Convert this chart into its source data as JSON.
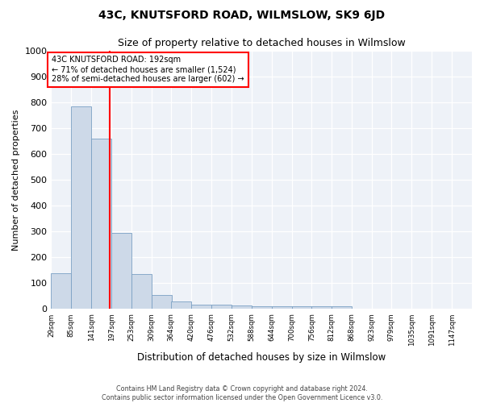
{
  "title": "43C, KNUTSFORD ROAD, WILMSLOW, SK9 6JD",
  "subtitle": "Size of property relative to detached houses in Wilmslow",
  "xlabel": "Distribution of detached houses by size in Wilmslow",
  "ylabel": "Number of detached properties",
  "footer1": "Contains HM Land Registry data © Crown copyright and database right 2024.",
  "footer2": "Contains public sector information licensed under the Open Government Licence v3.0.",
  "annotation_line1": "43C KNUTSFORD ROAD: 192sqm",
  "annotation_line2": "← 71% of detached houses are smaller (1,524)",
  "annotation_line3": "28% of semi-detached houses are larger (602) →",
  "bar_color": "#cdd9e8",
  "bar_edge_color": "#7aa0c4",
  "red_line_x": 192,
  "categories": [
    "29sqm",
    "85sqm",
    "141sqm",
    "197sqm",
    "253sqm",
    "309sqm",
    "364sqm",
    "420sqm",
    "476sqm",
    "532sqm",
    "588sqm",
    "644sqm",
    "700sqm",
    "756sqm",
    "812sqm",
    "868sqm",
    "923sqm",
    "979sqm",
    "1035sqm",
    "1091sqm",
    "1147sqm"
  ],
  "bin_edges": [
    29,
    85,
    141,
    197,
    253,
    309,
    364,
    420,
    476,
    532,
    588,
    644,
    700,
    756,
    812,
    868,
    923,
    979,
    1035,
    1091,
    1147
  ],
  "bin_width": 56,
  "values": [
    140,
    785,
    660,
    295,
    135,
    55,
    30,
    18,
    18,
    15,
    10,
    10,
    10,
    10,
    10,
    0,
    0,
    0,
    0,
    0,
    0
  ],
  "ylim": [
    0,
    1000
  ],
  "yticks": [
    0,
    100,
    200,
    300,
    400,
    500,
    600,
    700,
    800,
    900,
    1000
  ],
  "background_color": "#eef2f8",
  "plot_background": "#eef2f8",
  "title_fontsize": 10,
  "subtitle_fontsize": 9
}
